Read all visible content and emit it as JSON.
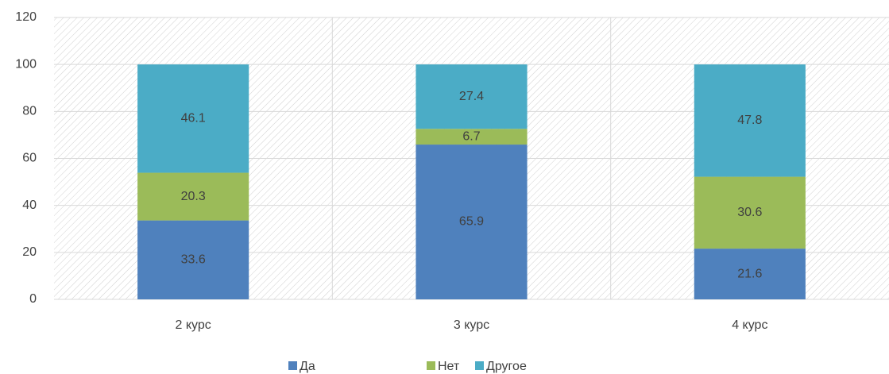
{
  "chart_data": {
    "type": "stacked_bar",
    "categories": [
      "2 курс",
      "3 курс",
      "4 курс"
    ],
    "series": [
      {
        "name": "Да",
        "color": "#4f81bd",
        "values": [
          33.6,
          65.9,
          21.6
        ]
      },
      {
        "name": "Нет",
        "color": "#9bbb59",
        "values": [
          20.3,
          6.7,
          30.6
        ]
      },
      {
        "name": "Другое",
        "color": "#4bacc6",
        "values": [
          46.1,
          27.4,
          47.8
        ]
      }
    ],
    "ylim": [
      0,
      120
    ],
    "yticks": [
      0,
      20,
      40,
      60,
      80,
      100,
      120
    ],
    "grid": true,
    "legend": "bottom"
  }
}
